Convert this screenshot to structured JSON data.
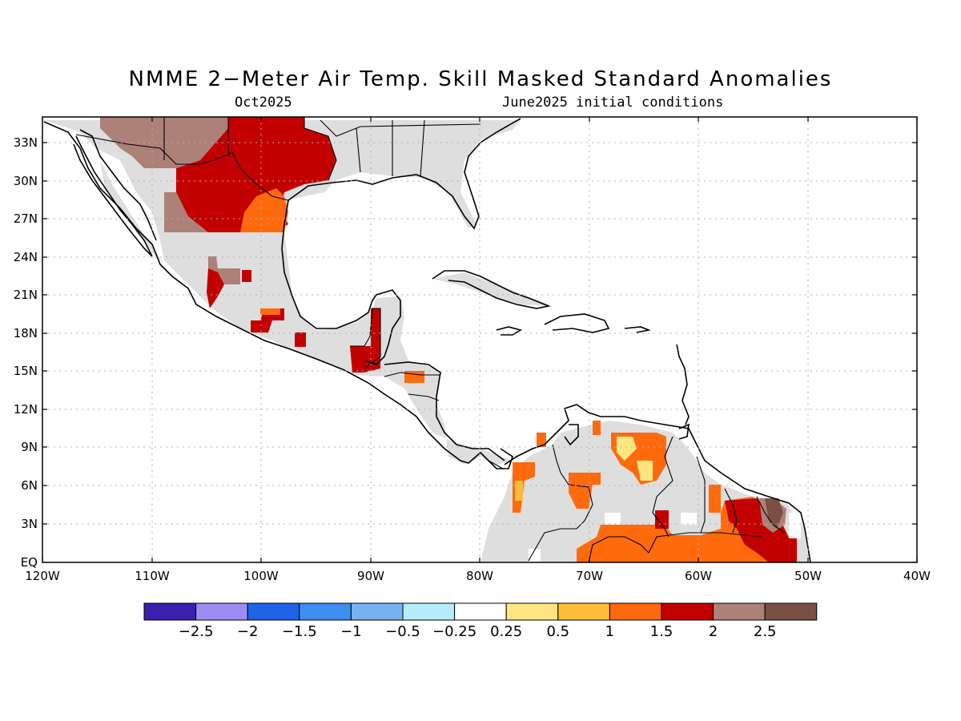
{
  "title": "NMME 2−Meter Air Temp. Skill Masked Standard Anomalies",
  "subtitle_left": "Oct2025",
  "subtitle_right": "June2025 initial conditions",
  "lat_labels": [
    "33N",
    "30N",
    "27N",
    "24N",
    "21N",
    "18N",
    "15N",
    "12N",
    "9N",
    "6N",
    "3N",
    "EQ"
  ],
  "lon_labels": [
    "120W",
    "110W",
    "100W",
    "90W",
    "80W",
    "70W",
    "60W",
    "50W",
    "40W"
  ],
  "colorbar": {
    "colors": [
      "#3b1fad",
      "#9e8cf5",
      "#1f63e6",
      "#3d8ef0",
      "#76b2f2",
      "#b7ebfa",
      "#ffffff",
      "#ffe680",
      "#ffbd3b",
      "#ff6a0d",
      "#c20000",
      "#ad8078",
      "#7a5045"
    ],
    "labels": [
      "−2.5",
      "−2",
      "−1.5",
      "−1",
      "−0.5",
      "−0.25",
      "0.25",
      "0.5",
      "1",
      "1.5",
      "2",
      "2.5"
    ]
  },
  "map_colors": {
    "mask_gray": "#dedede",
    "grid": "#b0b0b0"
  }
}
